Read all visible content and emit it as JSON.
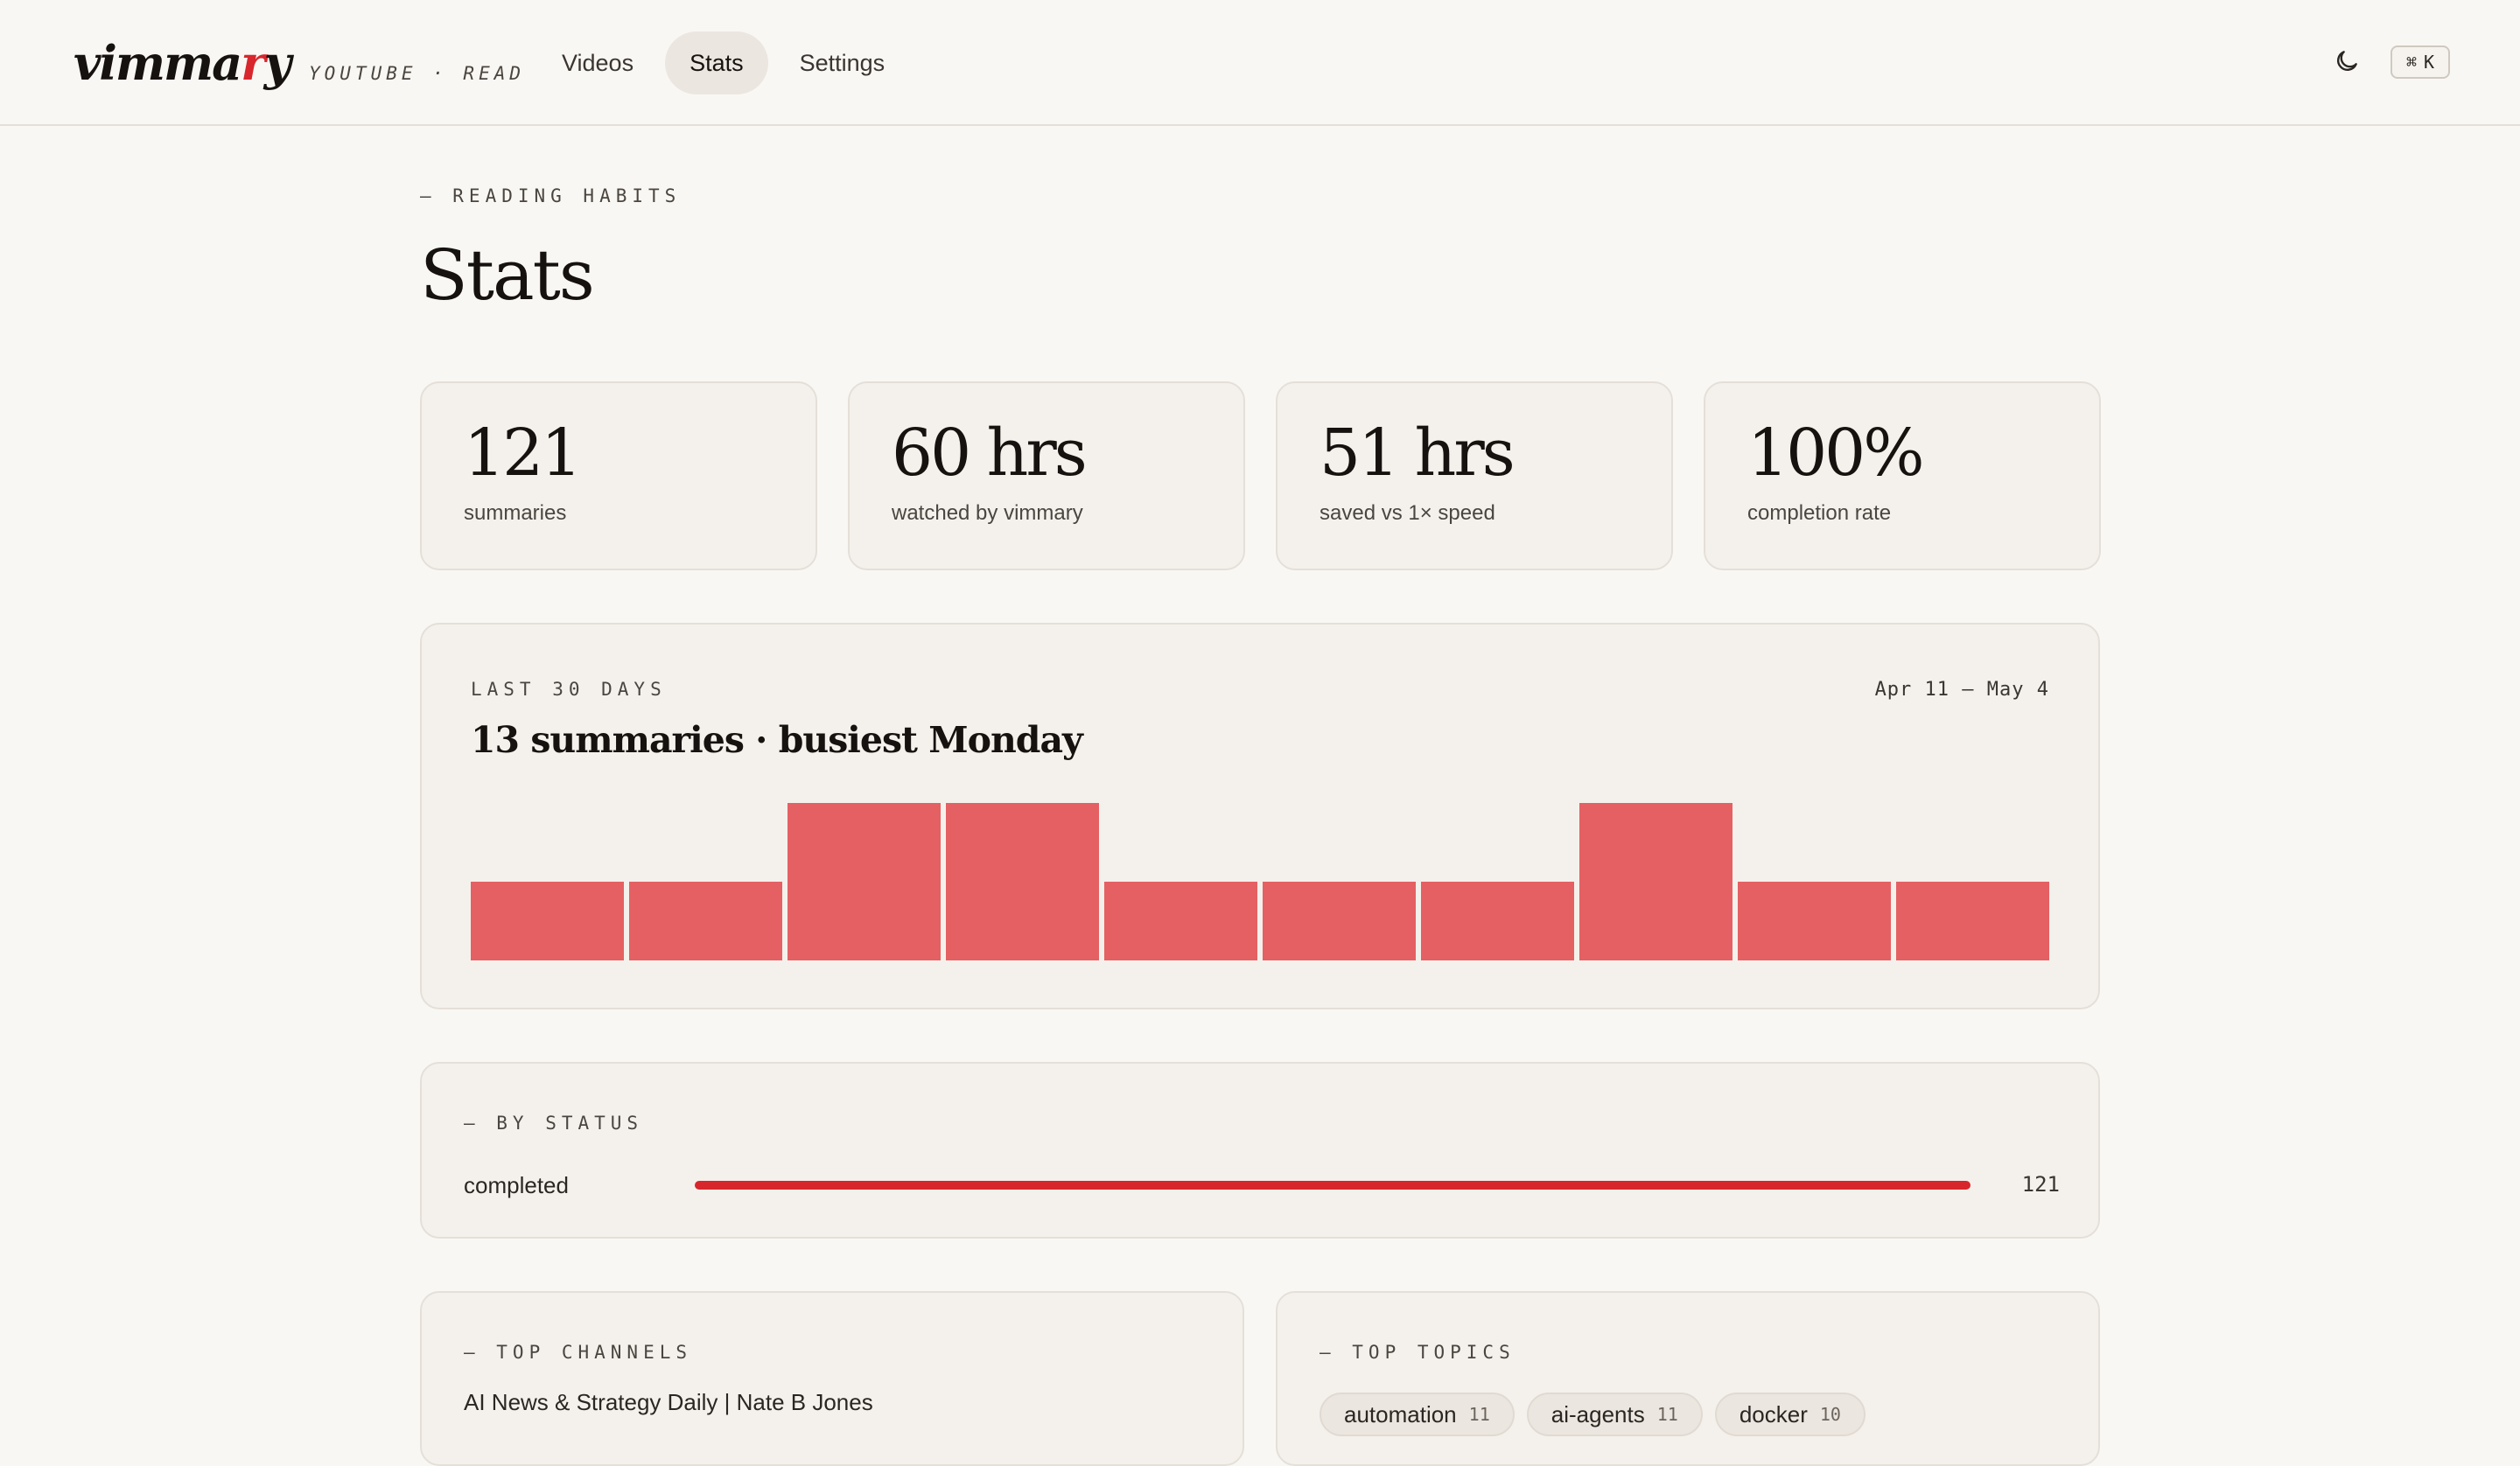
{
  "header": {
    "logo_pre": "vimma",
    "logo_accent": "r",
    "logo_post": "y",
    "tagline": "YOUTUBE · READ",
    "nav": [
      {
        "label": "Videos",
        "active": false
      },
      {
        "label": "Stats",
        "active": true
      },
      {
        "label": "Settings",
        "active": false
      }
    ],
    "theme_icon": "moon-icon",
    "shortcut": {
      "symbol": "⌘",
      "key": "K"
    }
  },
  "page": {
    "eyebrow": "— READING HABITS",
    "title": "Stats"
  },
  "stats": [
    {
      "value": "121",
      "label": "summaries"
    },
    {
      "value": "60 hrs",
      "label": "watched by vimmary"
    },
    {
      "value": "51 hrs",
      "label": "saved vs 1× speed"
    },
    {
      "value": "100%",
      "label": "completion rate"
    }
  ],
  "activity": {
    "eyebrow": "LAST 30 DAYS",
    "range": "Apr 11 — May 4",
    "headline": "13 summaries · busiest Monday"
  },
  "chart_data": {
    "type": "bar",
    "values": [
      1,
      1,
      2,
      2,
      1,
      1,
      1,
      2,
      1,
      1
    ],
    "ylim": [
      0,
      2
    ],
    "color": "#e56062",
    "grid": false
  },
  "status": {
    "eyebrow": "— BY STATUS",
    "rows": [
      {
        "label": "completed",
        "count": "121",
        "fraction": 1.0,
        "color": "#d8262d"
      }
    ]
  },
  "channels": {
    "eyebrow": "— TOP CHANNELS",
    "items": [
      "AI News & Strategy Daily | Nate B Jones"
    ]
  },
  "topics": {
    "eyebrow": "— TOP TOPICS",
    "items": [
      {
        "label": "automation",
        "count": "11"
      },
      {
        "label": "ai-agents",
        "count": "11"
      },
      {
        "label": "docker",
        "count": "10"
      }
    ]
  }
}
